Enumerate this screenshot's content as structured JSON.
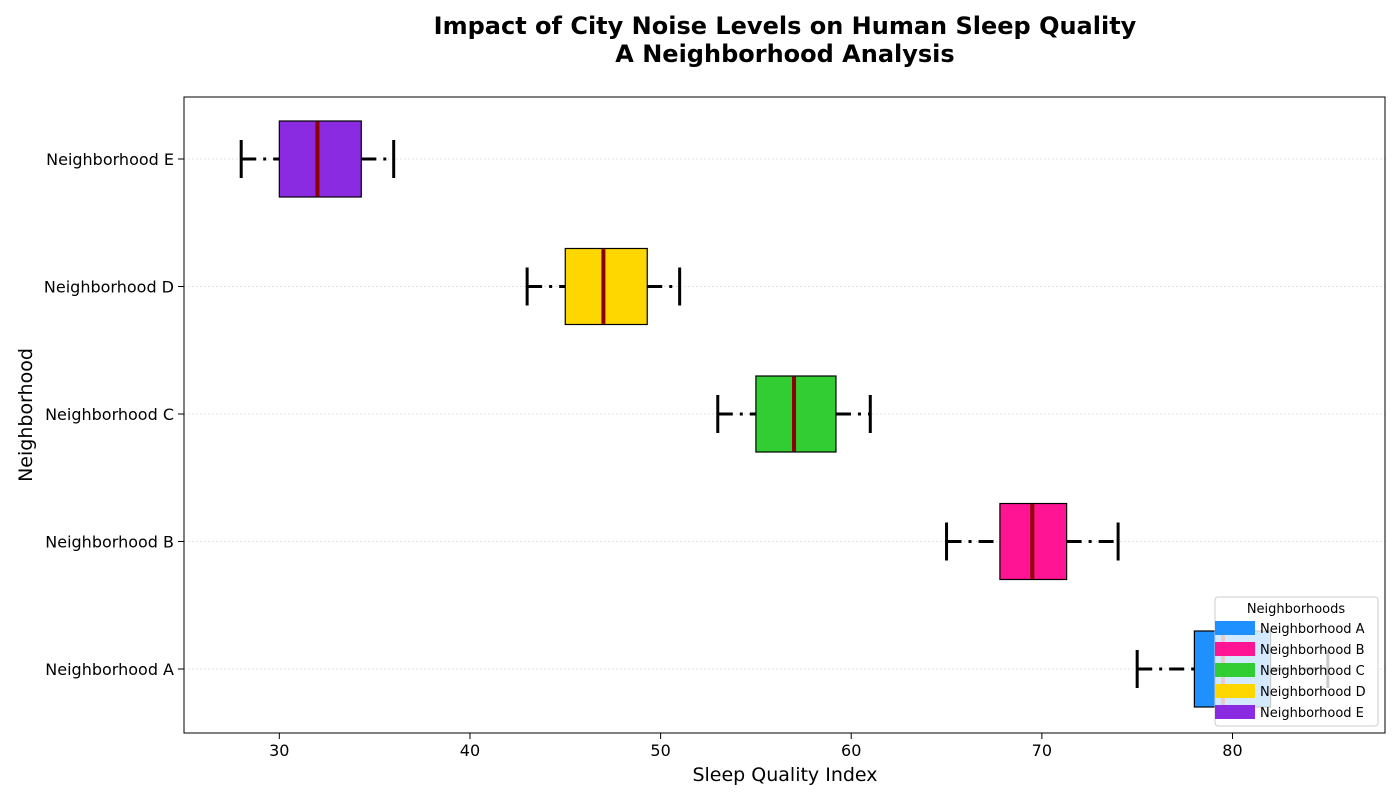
{
  "chart_data": {
    "type": "boxplot",
    "orientation": "horizontal",
    "title_lines": [
      "Impact of City Noise Levels on Human Sleep Quality",
      "A Neighborhood Analysis"
    ],
    "xlabel": "Sleep Quality Index",
    "ylabel": "Neighborhood",
    "xlim": [
      25,
      88
    ],
    "xticks": [
      30,
      40,
      50,
      60,
      70,
      80
    ],
    "grid": "y-dotted",
    "categories": [
      "Neighborhood A",
      "Neighborhood B",
      "Neighborhood C",
      "Neighborhood D",
      "Neighborhood E"
    ],
    "series": [
      {
        "name": "Neighborhood A",
        "color": "#1E90FF",
        "whisker_low": 75,
        "q1": 78,
        "median": 79.5,
        "q3": 82,
        "whisker_high": 85
      },
      {
        "name": "Neighborhood B",
        "color": "#FF1493",
        "whisker_low": 65,
        "q1": 67.8,
        "median": 69.5,
        "q3": 71.3,
        "whisker_high": 74
      },
      {
        "name": "Neighborhood C",
        "color": "#32CD32",
        "whisker_low": 53,
        "q1": 55,
        "median": 57,
        "q3": 59.2,
        "whisker_high": 61
      },
      {
        "name": "Neighborhood D",
        "color": "#FFD700",
        "whisker_low": 43,
        "q1": 45,
        "median": 47,
        "q3": 49.3,
        "whisker_high": 51
      },
      {
        "name": "Neighborhood E",
        "color": "#8A2BE2",
        "whisker_low": 28,
        "q1": 30,
        "median": 32,
        "q3": 34.3,
        "whisker_high": 36
      }
    ],
    "median_color": "#8B0000",
    "legend": {
      "title": "Neighborhoods",
      "placement": "lower-right",
      "entries": [
        "Neighborhood A",
        "Neighborhood B",
        "Neighborhood C",
        "Neighborhood D",
        "Neighborhood E"
      ]
    }
  }
}
